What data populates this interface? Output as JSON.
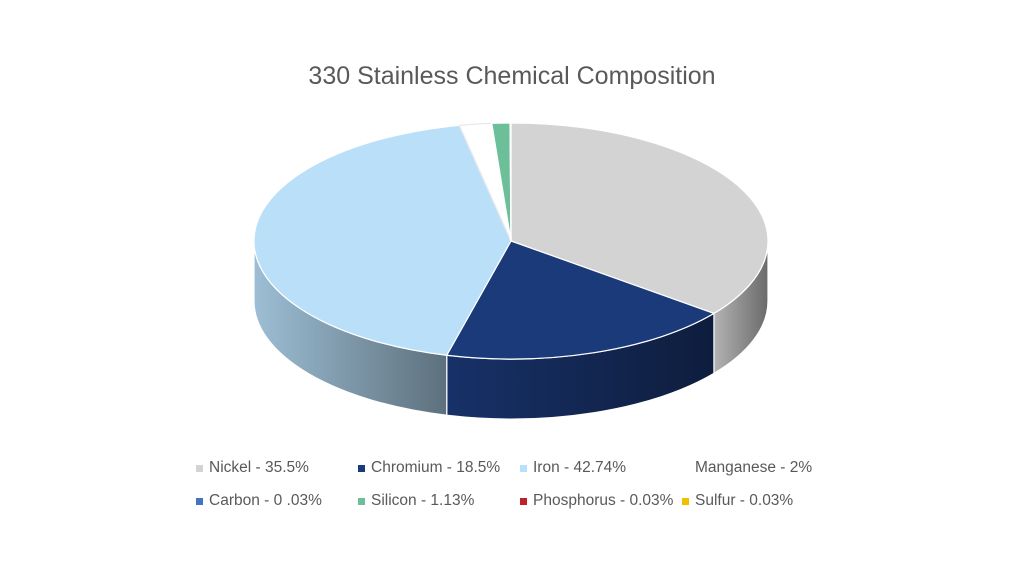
{
  "chart_data": {
    "type": "pie",
    "title": "330 Stainless Chemical Composition",
    "legend_position": "bottom",
    "slices": [
      {
        "label": "Nickel - 35.5%",
        "value": 35.5,
        "color": "#d3d3d3"
      },
      {
        "label": "Chromium - 18.5%",
        "value": 18.5,
        "color": "#1b3a7a"
      },
      {
        "label": "Iron - 42.74%",
        "value": 42.74,
        "color": "#b9dff9"
      },
      {
        "label": "Manganese - 2%",
        "value": 2,
        "color": "#ffffff"
      },
      {
        "label": "Carbon - 0 .03%",
        "value": 0.03,
        "color": "#4472c4"
      },
      {
        "label": "Silicon - 1.13%",
        "value": 1.13,
        "color": "#6dbf9a"
      },
      {
        "label": "Phosphorus - 0.03%",
        "value": 0.03,
        "color": "#c0202a"
      },
      {
        "label": "Sulfur - 0.03%",
        "value": 0.03,
        "color": "#f0c000"
      }
    ]
  }
}
